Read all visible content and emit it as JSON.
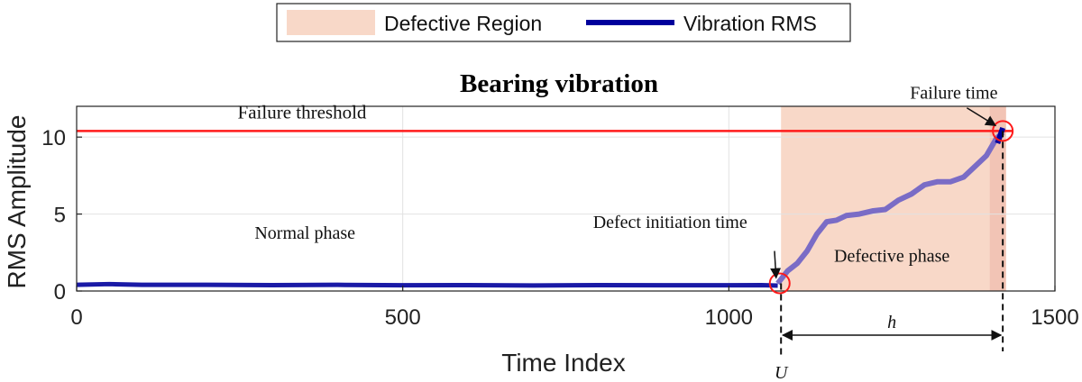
{
  "chart_data": {
    "type": "line",
    "title": "Bearing vibration",
    "xlabel": "Time Index",
    "ylabel": "RMS Amplitude",
    "xlim": [
      0,
      1500
    ],
    "ylim": [
      0,
      12
    ],
    "xticks": [
      0,
      500,
      1000,
      1500
    ],
    "yticks": [
      0,
      5,
      10
    ],
    "grid": true,
    "legend": {
      "placement": "top",
      "entries": [
        {
          "label": "Defective Region",
          "color": "#f8d8c8",
          "kind": "patch"
        },
        {
          "label": "Vibration RMS",
          "color": "#00009c",
          "kind": "line"
        }
      ]
    },
    "colors": {
      "normal_line": "#1a1aa6",
      "defective_line": "#7a6cc6",
      "threshold": "#ff1a1a",
      "region": "#f8d8c8",
      "region_end": "#f0bfb0",
      "marker": "#ff1a1a"
    },
    "failure_threshold": {
      "value": 10.4,
      "label": "Failure threshold"
    },
    "defective_region": {
      "x_start": 1080,
      "x_end": 1425
    },
    "series": [
      {
        "name": "Vibration RMS",
        "x": [
          0,
          50,
          100,
          200,
          300,
          400,
          500,
          600,
          700,
          800,
          900,
          1000,
          1050,
          1075
        ],
        "values": [
          0.4,
          0.45,
          0.4,
          0.4,
          0.38,
          0.4,
          0.37,
          0.38,
          0.36,
          0.38,
          0.37,
          0.37,
          0.38,
          0.35
        ]
      },
      {
        "name": "Vibration RMS (defective phase)",
        "x": [
          1075,
          1090,
          1105,
          1120,
          1135,
          1150,
          1165,
          1180,
          1200,
          1220,
          1240,
          1260,
          1280,
          1300,
          1320,
          1340,
          1360,
          1380,
          1395,
          1410,
          1420
        ],
        "values": [
          0.5,
          1.3,
          1.8,
          2.6,
          3.7,
          4.5,
          4.6,
          4.9,
          5.0,
          5.2,
          5.3,
          5.9,
          6.3,
          6.9,
          7.1,
          7.1,
          7.4,
          8.2,
          8.8,
          9.9,
          10.3
        ]
      }
    ],
    "annotations": [
      {
        "text": "Normal phase",
        "x": 350,
        "y": 3.4
      },
      {
        "text": "Defective phase",
        "x": 1250,
        "y": 1.9
      },
      {
        "text": "Defect initiation time",
        "x": 910,
        "y": 4.1
      },
      {
        "text": "Failure time",
        "x": 1345,
        "y": 12.5
      }
    ],
    "markers": [
      {
        "name": "defect-initiation",
        "x": 1078,
        "y": 0.5
      },
      {
        "name": "failure",
        "x": 1420,
        "y": 10.4
      }
    ],
    "interval": {
      "from": 1080,
      "to": 1420,
      "label": "h",
      "start_label": "U"
    }
  }
}
